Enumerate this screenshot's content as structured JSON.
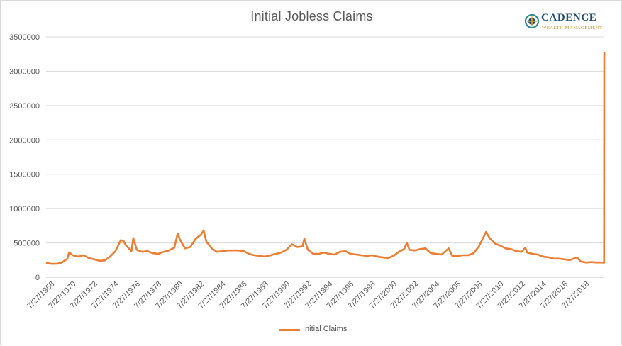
{
  "logo": {
    "name": "CADENCE",
    "tagline": "WEALTH MANAGEMENT",
    "colors": {
      "navy": "#1f4e79",
      "gold": "#c7952c",
      "teal": "#2e8b9a"
    }
  },
  "chart_data": {
    "type": "line",
    "title": "Initial Jobless Claims",
    "xlabel": "",
    "ylabel": "",
    "ylim": [
      0,
      3500000
    ],
    "y_ticks": [
      "0",
      "500000",
      "1000000",
      "1500000",
      "2000000",
      "2500000",
      "3000000",
      "3500000"
    ],
    "x_ticks": [
      "7/27/1968",
      "7/27/1970",
      "7/27/1972",
      "7/27/1974",
      "7/27/1976",
      "7/27/1978",
      "7/27/1980",
      "7/27/1982",
      "7/27/1984",
      "7/27/1986",
      "7/27/1988",
      "7/27/1990",
      "7/27/1992",
      "7/27/1994",
      "7/27/1996",
      "7/27/1998",
      "7/27/2000",
      "7/27/2002",
      "7/27/2004",
      "7/27/2006",
      "7/27/2008",
      "7/27/2010",
      "7/27/2012",
      "7/27/2014",
      "7/27/2016",
      "7/27/2018"
    ],
    "x_range": [
      "1968-01-06",
      "2020-03-21"
    ],
    "grid": "horizontal",
    "legend_position": "bottom",
    "series": [
      {
        "name": "Initial Claims",
        "color": "#ed7d31",
        "points": [
          [
            "1968-01-06",
            210000
          ],
          [
            "1968-07-01",
            195000
          ],
          [
            "1969-01-01",
            195000
          ],
          [
            "1969-07-01",
            215000
          ],
          [
            "1970-01-01",
            270000
          ],
          [
            "1970-03-01",
            360000
          ],
          [
            "1970-07-01",
            320000
          ],
          [
            "1971-01-01",
            300000
          ],
          [
            "1971-07-01",
            320000
          ],
          [
            "1972-01-01",
            280000
          ],
          [
            "1972-07-01",
            260000
          ],
          [
            "1973-01-01",
            240000
          ],
          [
            "1973-07-01",
            245000
          ],
          [
            "1974-01-01",
            300000
          ],
          [
            "1974-07-01",
            380000
          ],
          [
            "1975-01-01",
            540000
          ],
          [
            "1975-04-01",
            530000
          ],
          [
            "1975-07-01",
            460000
          ],
          [
            "1976-01-01",
            380000
          ],
          [
            "1976-03-01",
            570000
          ],
          [
            "1976-07-01",
            400000
          ],
          [
            "1977-01-01",
            370000
          ],
          [
            "1977-07-01",
            380000
          ],
          [
            "1978-01-01",
            350000
          ],
          [
            "1978-07-01",
            340000
          ],
          [
            "1979-01-01",
            370000
          ],
          [
            "1979-07-01",
            390000
          ],
          [
            "1980-01-01",
            430000
          ],
          [
            "1980-05-01",
            640000
          ],
          [
            "1980-07-01",
            560000
          ],
          [
            "1981-01-01",
            420000
          ],
          [
            "1981-07-01",
            440000
          ],
          [
            "1982-01-01",
            560000
          ],
          [
            "1982-07-01",
            620000
          ],
          [
            "1982-10-01",
            680000
          ],
          [
            "1983-01-01",
            520000
          ],
          [
            "1983-07-01",
            420000
          ],
          [
            "1984-01-01",
            370000
          ],
          [
            "1984-07-01",
            380000
          ],
          [
            "1985-01-01",
            390000
          ],
          [
            "1985-07-01",
            390000
          ],
          [
            "1986-01-01",
            390000
          ],
          [
            "1986-07-01",
            380000
          ],
          [
            "1987-01-01",
            340000
          ],
          [
            "1987-07-01",
            320000
          ],
          [
            "1988-01-01",
            310000
          ],
          [
            "1988-07-01",
            300000
          ],
          [
            "1989-01-01",
            320000
          ],
          [
            "1989-07-01",
            340000
          ],
          [
            "1990-01-01",
            360000
          ],
          [
            "1990-07-01",
            400000
          ],
          [
            "1991-01-01",
            480000
          ],
          [
            "1991-03-01",
            470000
          ],
          [
            "1991-07-01",
            440000
          ],
          [
            "1992-01-01",
            450000
          ],
          [
            "1992-03-01",
            560000
          ],
          [
            "1992-07-01",
            400000
          ],
          [
            "1993-01-01",
            340000
          ],
          [
            "1993-07-01",
            340000
          ],
          [
            "1994-01-01",
            360000
          ],
          [
            "1994-07-01",
            340000
          ],
          [
            "1995-01-01",
            330000
          ],
          [
            "1995-07-01",
            370000
          ],
          [
            "1996-01-01",
            380000
          ],
          [
            "1996-07-01",
            340000
          ],
          [
            "1997-01-01",
            330000
          ],
          [
            "1997-07-01",
            320000
          ],
          [
            "1998-01-01",
            310000
          ],
          [
            "1998-07-01",
            320000
          ],
          [
            "1999-01-01",
            300000
          ],
          [
            "1999-07-01",
            290000
          ],
          [
            "2000-01-01",
            280000
          ],
          [
            "2000-07-01",
            310000
          ],
          [
            "2001-01-01",
            370000
          ],
          [
            "2001-07-01",
            410000
          ],
          [
            "2001-10-01",
            500000
          ],
          [
            "2002-01-01",
            400000
          ],
          [
            "2002-07-01",
            390000
          ],
          [
            "2003-01-01",
            410000
          ],
          [
            "2003-07-01",
            420000
          ],
          [
            "2004-01-01",
            350000
          ],
          [
            "2004-07-01",
            340000
          ],
          [
            "2005-01-01",
            330000
          ],
          [
            "2005-09-01",
            420000
          ],
          [
            "2006-01-01",
            310000
          ],
          [
            "2006-07-01",
            310000
          ],
          [
            "2007-01-01",
            320000
          ],
          [
            "2007-07-01",
            320000
          ],
          [
            "2008-01-01",
            350000
          ],
          [
            "2008-07-01",
            450000
          ],
          [
            "2009-03-01",
            660000
          ],
          [
            "2009-07-01",
            570000
          ],
          [
            "2010-01-01",
            490000
          ],
          [
            "2010-07-01",
            460000
          ],
          [
            "2011-01-01",
            420000
          ],
          [
            "2011-07-01",
            410000
          ],
          [
            "2012-01-01",
            380000
          ],
          [
            "2012-07-01",
            370000
          ],
          [
            "2012-11-01",
            430000
          ],
          [
            "2013-01-01",
            360000
          ],
          [
            "2013-07-01",
            340000
          ],
          [
            "2014-01-01",
            330000
          ],
          [
            "2014-07-01",
            300000
          ],
          [
            "2015-01-01",
            290000
          ],
          [
            "2015-07-01",
            270000
          ],
          [
            "2016-01-01",
            270000
          ],
          [
            "2016-07-01",
            260000
          ],
          [
            "2017-01-01",
            250000
          ],
          [
            "2017-09-01",
            290000
          ],
          [
            "2018-01-01",
            230000
          ],
          [
            "2018-07-01",
            215000
          ],
          [
            "2019-01-01",
            220000
          ],
          [
            "2019-07-01",
            215000
          ],
          [
            "2020-01-01",
            215000
          ],
          [
            "2020-03-14",
            211000
          ],
          [
            "2020-03-21",
            3283000
          ]
        ]
      }
    ]
  }
}
